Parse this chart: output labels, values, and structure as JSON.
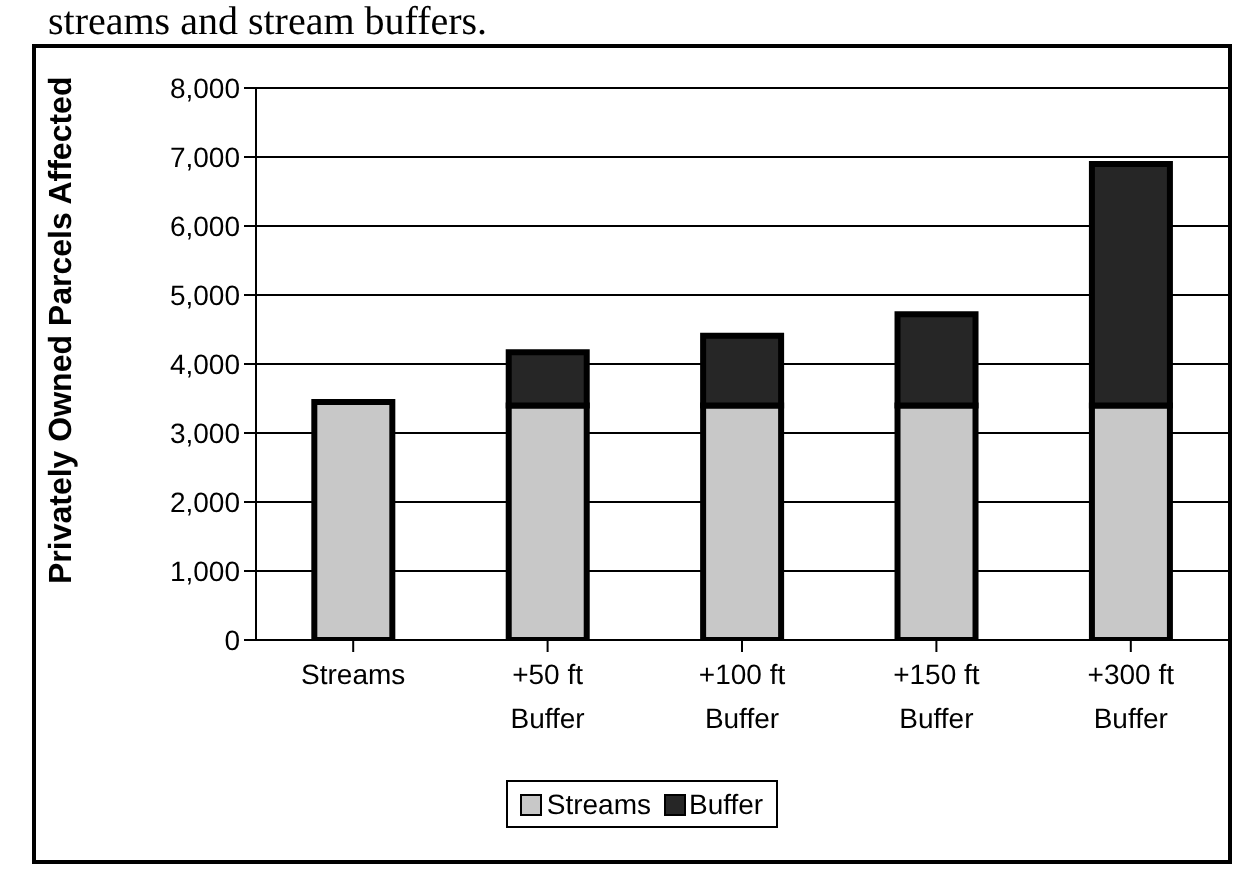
{
  "chart_data": {
    "type": "bar",
    "stacked": true,
    "annotations": [
      "streams and stream buffers."
    ],
    "ylabel": "Privately Owned Parcels Affected",
    "categories": [
      "Streams",
      "+50 ft Buffer",
      "+100 ft Buffer",
      "+150 ft Buffer",
      "+300 ft Buffer"
    ],
    "series": [
      {
        "name": "Streams",
        "color": "#c8c8c8",
        "values": [
          3450,
          3400,
          3400,
          3400,
          3400
        ]
      },
      {
        "name": "Buffer",
        "color": "#262626",
        "values": [
          0,
          770,
          1010,
          1320,
          3500
        ]
      }
    ],
    "ylim": [
      0,
      8000
    ],
    "yticks": [
      0,
      {
        "value": 1000,
        "label": "1,000"
      },
      {
        "value": 2000,
        "label": "2,000"
      },
      {
        "value": 3000,
        "label": "3,000"
      },
      {
        "value": 4000,
        "label": "4,000"
      },
      {
        "value": 5000,
        "label": "5,000"
      },
      {
        "value": 6000,
        "label": "6,000"
      },
      {
        "value": 7000,
        "label": "7,000"
      },
      {
        "value": 8000,
        "label": "8,000"
      }
    ],
    "grid": "y",
    "legend": "bottom"
  }
}
